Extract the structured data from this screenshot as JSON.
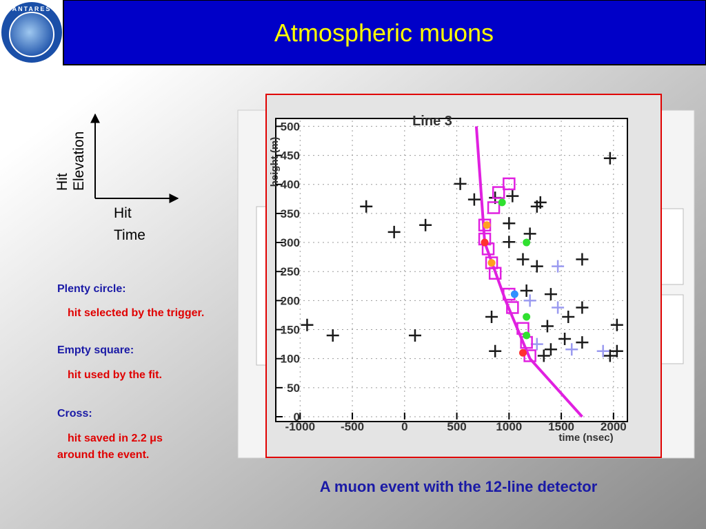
{
  "header": {
    "title": "Atmospheric muons",
    "logo_text": "ANTARES"
  },
  "axes_sketch": {
    "y_label": [
      "Hit",
      "Elevation"
    ],
    "x_label": [
      "Hit",
      "Time"
    ]
  },
  "legend": [
    {
      "heading": "Plenty circle:",
      "lines": [
        "hit selected by the trigger."
      ]
    },
    {
      "heading": "Empty square:",
      "lines": [
        "hit used by the fit."
      ]
    },
    {
      "heading": "Cross:",
      "lines": [
        "hit saved in 2.2 μs",
        "around the event."
      ]
    }
  ],
  "caption": "A muon event with the 12-line detector",
  "chart_data": {
    "type": "scatter",
    "title": "Line 3",
    "x_label": "time (nsec)",
    "y_label": "height (m)",
    "xlim": [
      -1200,
      2100
    ],
    "ylim": [
      0,
      510
    ],
    "xticks": [
      -1000,
      -500,
      0,
      500,
      1000,
      1500,
      2000
    ],
    "yticks": [
      0,
      50,
      100,
      150,
      200,
      250,
      300,
      350,
      400,
      450,
      500
    ],
    "grid": true,
    "series": [
      {
        "type": "line",
        "color": "#e020e0",
        "x": [
          687,
          767,
          967,
          1200,
          1700
        ],
        "values": [
          500,
          300,
          200,
          100,
          0
        ]
      },
      {
        "marker": "cross",
        "color": "#1a1a1a",
        "x": [
          1967,
          533,
          -367,
          200,
          -100,
          667,
          867,
          1033,
          1300,
          1267,
          1000,
          1200,
          1000,
          1133,
          1700,
          1267,
          1167,
          1400,
          1700,
          833,
          1567,
          1367,
          2033,
          -933,
          -687,
          100,
          1533,
          1700,
          867,
          1333,
          2033,
          1967,
          1400
        ],
        "values": [
          445,
          401,
          362,
          330,
          318,
          374,
          377,
          380,
          369,
          362,
          333,
          315,
          301,
          271,
          271,
          259,
          217,
          211,
          188,
          172,
          172,
          156,
          158,
          158,
          140,
          140,
          134,
          128,
          113,
          105,
          113,
          105,
          116
        ]
      },
      {
        "marker": "cross",
        "color": "#9a9af0",
        "x": [
          1467,
          1200,
          1467,
          1600,
          1900,
          1267
        ],
        "values": [
          259,
          200,
          188,
          116,
          113,
          125
        ]
      },
      {
        "marker": "square",
        "color": "#e020e0",
        "x": [
          1000,
          900,
          853,
          767,
          767,
          800,
          833,
          867,
          1000,
          1033,
          1133,
          1167,
          1200
        ],
        "values": [
          401,
          386,
          360,
          330,
          306,
          289,
          265,
          247,
          211,
          188,
          152,
          128,
          105
        ]
      },
      {
        "marker": "circle",
        "colors": [
          "#30e030",
          "#30e030",
          "#30e030",
          "#30e030",
          "#ffa020",
          "#ffa020",
          "#3090ff",
          "#ff3030",
          "#ff3030"
        ],
        "x": [
          933,
          1167,
          1167,
          1167,
          787,
          833,
          1053,
          1133,
          767
        ],
        "values": [
          369,
          300,
          172,
          140,
          330,
          265,
          211,
          110,
          300
        ]
      }
    ]
  }
}
